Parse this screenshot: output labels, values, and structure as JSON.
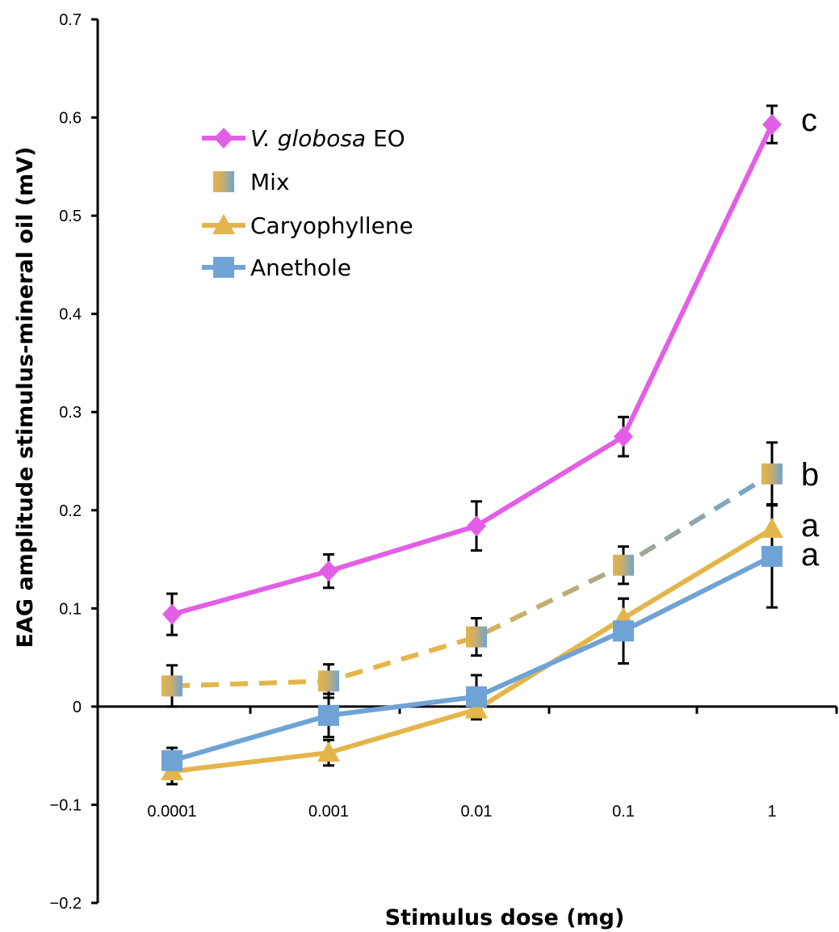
{
  "chart_data": {
    "type": "line",
    "title": "",
    "xlabel": "Stimulus dose (mg)",
    "ylabel": "EAG amplitude stimulus-mineral oil (mV)",
    "categories": [
      "0.0001",
      "0.001",
      "0.01",
      "0.1",
      "1"
    ],
    "ylim": [
      -0.2,
      0.7
    ],
    "yticks": [
      "-0.2",
      "-0.1",
      "0",
      "0.1",
      "0.2",
      "0.3",
      "0.4",
      "0.5",
      "0.6",
      "0.7"
    ],
    "legend_position": "top-left",
    "series": [
      {
        "name_italic": "V. globosa",
        "name_rest": " EO",
        "color": "#e35ee6",
        "marker": "diamond",
        "dashed": false,
        "values": [
          0.094,
          0.138,
          0.184,
          0.275,
          0.593
        ],
        "errors": [
          0.021,
          0.017,
          0.025,
          0.02,
          0.019
        ]
      },
      {
        "name": "Mix",
        "color": "#e3b54a",
        "color2": "#6fa3d6",
        "marker": "square-gradient",
        "dashed": true,
        "values": [
          0.021,
          0.026,
          0.071,
          0.144,
          0.237
        ],
        "errors": [
          0.021,
          0.017,
          0.019,
          0.019,
          0.032
        ]
      },
      {
        "name": "Caryophyllene",
        "color": "#e3b54a",
        "marker": "triangle",
        "dashed": false,
        "values": [
          -0.066,
          -0.047,
          -0.003,
          0.09,
          0.181
        ],
        "errors": [
          0.013,
          0.013,
          0.01,
          0.02,
          0.025
        ]
      },
      {
        "name": "Anethole",
        "color": "#6fa3d6",
        "marker": "square",
        "dashed": false,
        "values": [
          -0.055,
          -0.009,
          0.01,
          0.077,
          0.153
        ],
        "errors": [
          0.013,
          0.022,
          0.022,
          0.033,
          0.052
        ]
      }
    ],
    "significance_labels": [
      {
        "text": "c",
        "value": 0.605
      },
      {
        "text": "b",
        "value": 0.237
      },
      {
        "text": "a",
        "value": 0.18
      },
      {
        "text": "a",
        "value": 0.152
      }
    ]
  }
}
